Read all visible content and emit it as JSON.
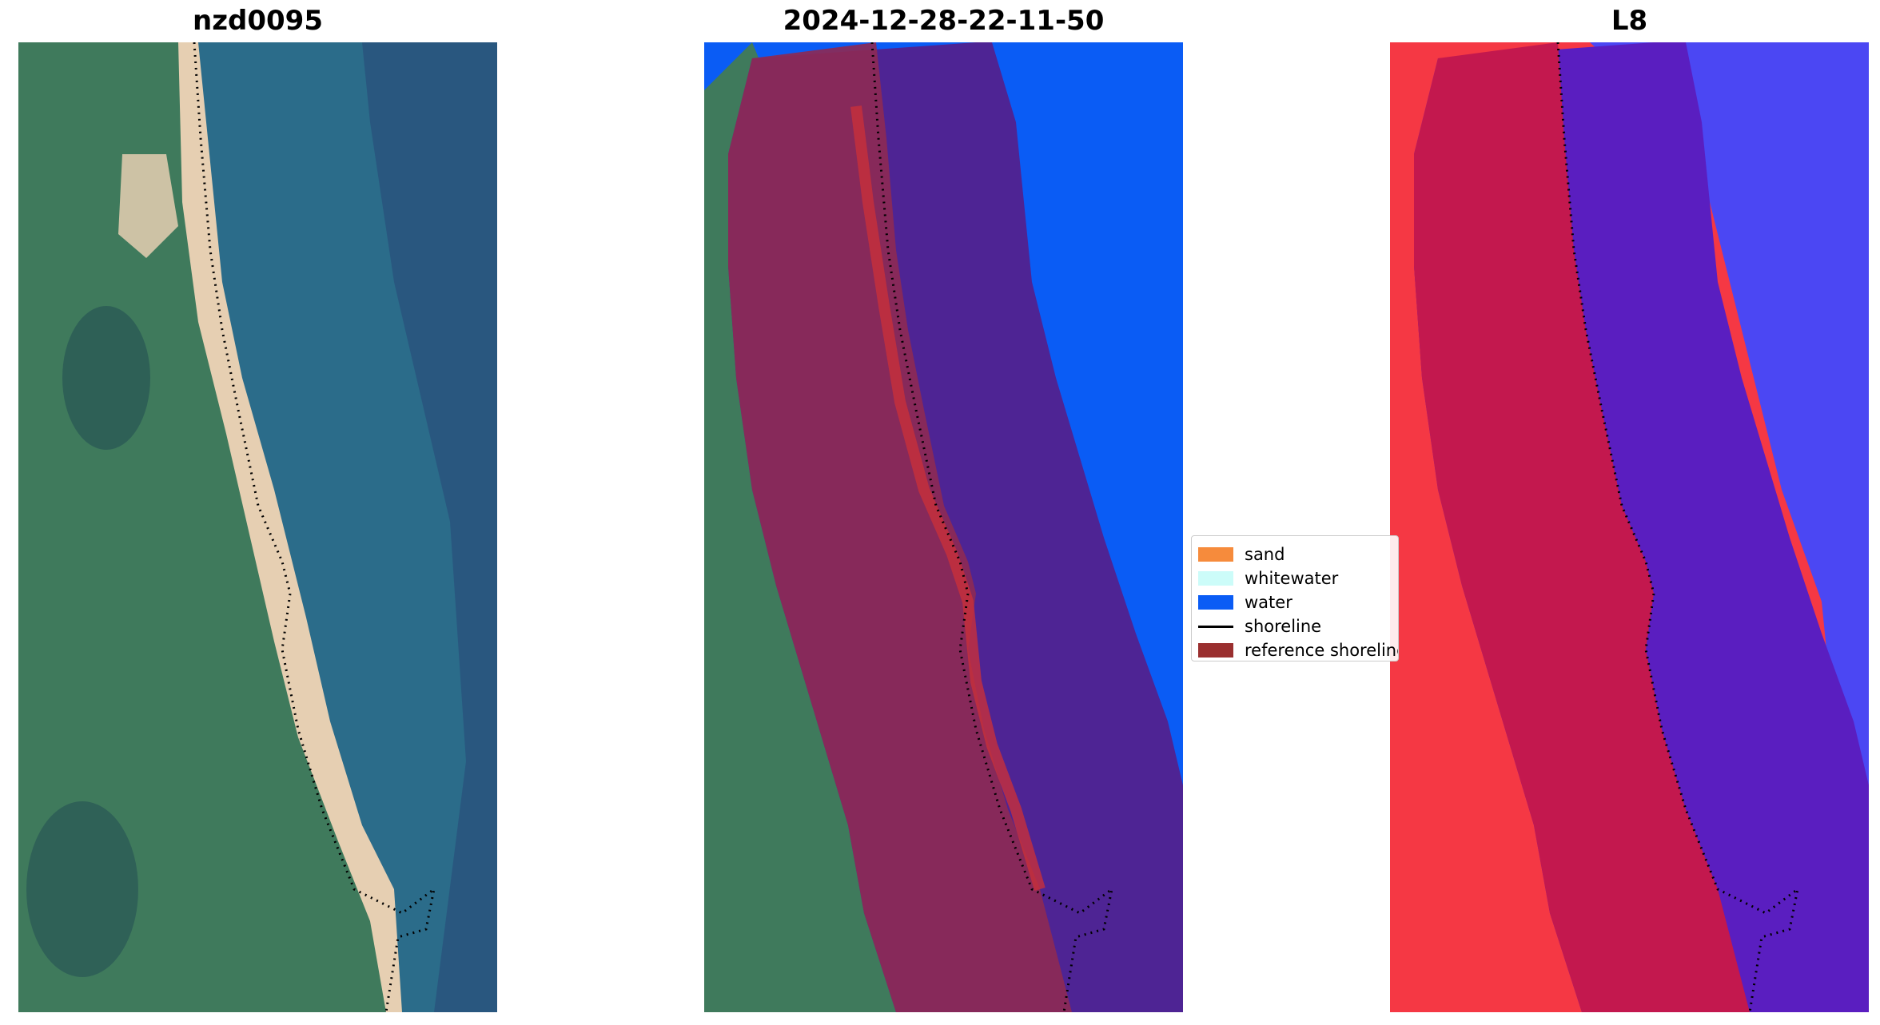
{
  "panels": [
    {
      "title": "nzd0095",
      "kind": "rgb"
    },
    {
      "title": "2024-12-28-22-11-50",
      "kind": "classified"
    },
    {
      "title": "L8",
      "kind": "index"
    }
  ],
  "legend": {
    "items": [
      {
        "label": "sand",
        "type": "patch",
        "color": "#f68b3c"
      },
      {
        "label": "whitewater",
        "type": "patch",
        "color": "#ccfcf9"
      },
      {
        "label": "water",
        "type": "patch",
        "color": "#0a5cf5"
      },
      {
        "label": "shoreline",
        "type": "line",
        "color": "#000000"
      },
      {
        "label": "reference shoreline",
        "type": "patch",
        "color": "#9a2f2f"
      }
    ]
  },
  "colors": {
    "land": "#3f7a5c",
    "land_dark": "#2b5a55",
    "sea": "#2b6c8a",
    "sea_dark": "#2a4f7a",
    "beach": "#e6cfb2",
    "buffer_land": "#8c2a55",
    "buffer_sea": "#4e2494",
    "index_land": "#f53844",
    "index_buffer_land": "#c3184e",
    "index_buffer_sea": "#5a1ec0",
    "index_sea": "#4b47f3"
  }
}
